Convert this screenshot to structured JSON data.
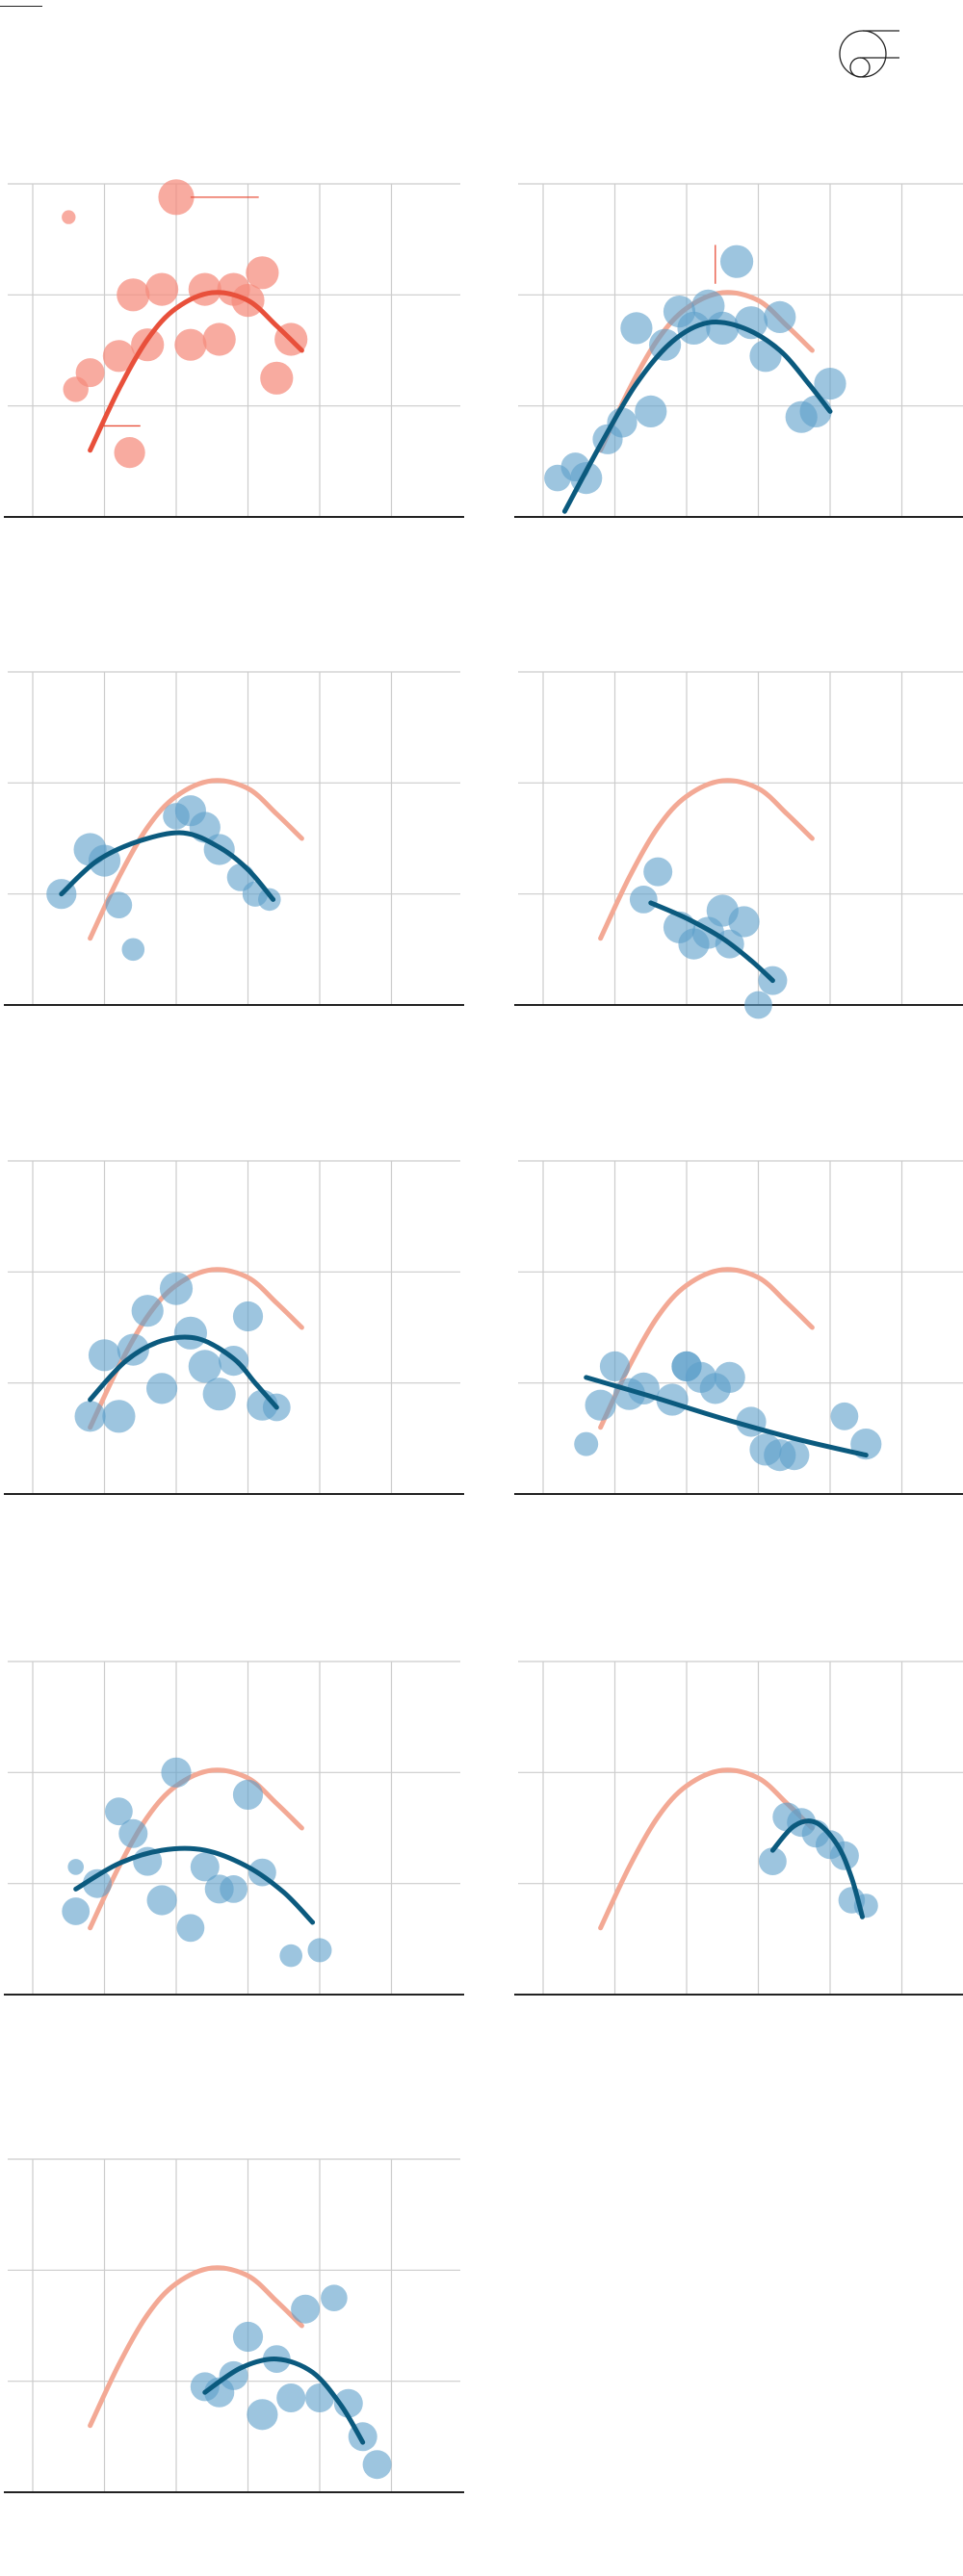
{
  "legend": {
    "icon": "bubble-size-legend-icon"
  },
  "colors": {
    "reference_fill": "#f58a7c",
    "reference_curve_main": "#e8503b",
    "reference_curve_faded": "#f3a995",
    "group_fill": "#5b9ec9",
    "group_curve": "#0b5a7e",
    "gridline": "#cccccc",
    "axis": "#222222"
  },
  "chart_data": [
    {
      "type": "scatter",
      "panel": "reference",
      "x_range": [
        0,
        6
      ],
      "y_range": [
        0,
        3
      ],
      "points": [
        {
          "x": 0.5,
          "y": 2.7,
          "size": 0.15
        },
        {
          "x": 2.0,
          "y": 2.88,
          "size": 1.0
        },
        {
          "x": 0.6,
          "y": 1.15,
          "size": 0.5
        },
        {
          "x": 0.8,
          "y": 1.3,
          "size": 0.65
        },
        {
          "x": 1.2,
          "y": 1.45,
          "size": 0.8
        },
        {
          "x": 1.4,
          "y": 2.0,
          "size": 0.85
        },
        {
          "x": 1.6,
          "y": 1.55,
          "size": 0.85
        },
        {
          "x": 1.8,
          "y": 2.05,
          "size": 0.85
        },
        {
          "x": 2.2,
          "y": 1.55,
          "size": 0.8
        },
        {
          "x": 2.4,
          "y": 2.05,
          "size": 0.85
        },
        {
          "x": 2.6,
          "y": 1.6,
          "size": 0.85
        },
        {
          "x": 2.8,
          "y": 2.05,
          "size": 0.85
        },
        {
          "x": 3.0,
          "y": 1.95,
          "size": 0.85
        },
        {
          "x": 3.2,
          "y": 2.2,
          "size": 0.85
        },
        {
          "x": 3.4,
          "y": 1.25,
          "size": 0.85
        },
        {
          "x": 3.6,
          "y": 1.6,
          "size": 0.85
        },
        {
          "x": 1.35,
          "y": 0.58,
          "size": 0.75
        }
      ],
      "curve": [
        [
          0.8,
          0.6
        ],
        [
          1.2,
          1.15
        ],
        [
          1.6,
          1.6
        ],
        [
          2.0,
          1.88
        ],
        [
          2.5,
          2.02
        ],
        [
          3.0,
          1.95
        ],
        [
          3.4,
          1.72
        ],
        [
          3.75,
          1.5
        ]
      ]
    },
    {
      "type": "scatter",
      "panel": "group-1",
      "x_range": [
        0,
        6
      ],
      "y_range": [
        0,
        3
      ],
      "points": [
        {
          "x": 0.2,
          "y": 0.35,
          "size": 0.55
        },
        {
          "x": 0.45,
          "y": 0.45,
          "size": 0.65
        },
        {
          "x": 0.6,
          "y": 0.35,
          "size": 0.8
        },
        {
          "x": 0.9,
          "y": 0.7,
          "size": 0.7
        },
        {
          "x": 1.1,
          "y": 0.85,
          "size": 0.7
        },
        {
          "x": 1.3,
          "y": 1.7,
          "size": 0.8
        },
        {
          "x": 1.5,
          "y": 0.95,
          "size": 0.8
        },
        {
          "x": 1.7,
          "y": 1.55,
          "size": 0.8
        },
        {
          "x": 1.9,
          "y": 1.85,
          "size": 0.8
        },
        {
          "x": 2.1,
          "y": 1.7,
          "size": 0.85
        },
        {
          "x": 2.3,
          "y": 1.9,
          "size": 0.85
        },
        {
          "x": 2.5,
          "y": 1.7,
          "size": 0.85
        },
        {
          "x": 2.7,
          "y": 2.3,
          "size": 0.85
        },
        {
          "x": 2.9,
          "y": 1.75,
          "size": 0.85
        },
        {
          "x": 3.1,
          "y": 1.45,
          "size": 0.8
        },
        {
          "x": 3.3,
          "y": 1.8,
          "size": 0.8
        },
        {
          "x": 3.6,
          "y": 0.9,
          "size": 0.8
        },
        {
          "x": 3.8,
          "y": 0.95,
          "size": 0.8
        },
        {
          "x": 4.0,
          "y": 1.2,
          "size": 0.8
        }
      ],
      "curve": [
        [
          0.3,
          0.05
        ],
        [
          0.8,
          0.65
        ],
        [
          1.3,
          1.2
        ],
        [
          1.8,
          1.58
        ],
        [
          2.3,
          1.75
        ],
        [
          2.8,
          1.7
        ],
        [
          3.3,
          1.5
        ],
        [
          3.7,
          1.2
        ],
        [
          4.0,
          0.95
        ]
      ]
    },
    {
      "type": "scatter",
      "panel": "group-2",
      "x_range": [
        0,
        6
      ],
      "y_range": [
        0,
        3
      ],
      "points": [
        {
          "x": 0.4,
          "y": 1.0,
          "size": 0.7
        },
        {
          "x": 0.8,
          "y": 1.4,
          "size": 0.85
        },
        {
          "x": 1.0,
          "y": 1.3,
          "size": 0.8
        },
        {
          "x": 1.2,
          "y": 0.9,
          "size": 0.55
        },
        {
          "x": 1.4,
          "y": 0.5,
          "size": 0.4
        },
        {
          "x": 2.0,
          "y": 1.7,
          "size": 0.55
        },
        {
          "x": 2.2,
          "y": 1.75,
          "size": 0.75
        },
        {
          "x": 2.4,
          "y": 1.6,
          "size": 0.75
        },
        {
          "x": 2.6,
          "y": 1.4,
          "size": 0.75
        },
        {
          "x": 2.9,
          "y": 1.15,
          "size": 0.6
        },
        {
          "x": 3.1,
          "y": 1.0,
          "size": 0.5
        },
        {
          "x": 3.3,
          "y": 0.95,
          "size": 0.4
        }
      ],
      "curve": [
        [
          0.4,
          1.0
        ],
        [
          0.9,
          1.3
        ],
        [
          1.5,
          1.48
        ],
        [
          2.1,
          1.55
        ],
        [
          2.6,
          1.42
        ],
        [
          3.0,
          1.22
        ],
        [
          3.35,
          0.95
        ]
      ]
    },
    {
      "type": "scatter",
      "panel": "group-3",
      "x_range": [
        0,
        6
      ],
      "y_range": [
        0,
        3
      ],
      "points": [
        {
          "x": 1.6,
          "y": 1.2,
          "size": 0.65
        },
        {
          "x": 1.4,
          "y": 0.95,
          "size": 0.6
        },
        {
          "x": 1.9,
          "y": 0.7,
          "size": 0.8
        },
        {
          "x": 2.1,
          "y": 0.55,
          "size": 0.75
        },
        {
          "x": 2.3,
          "y": 0.65,
          "size": 0.8
        },
        {
          "x": 2.5,
          "y": 0.85,
          "size": 0.8
        },
        {
          "x": 2.8,
          "y": 0.75,
          "size": 0.75
        },
        {
          "x": 2.6,
          "y": 0.55,
          "size": 0.65
        },
        {
          "x": 3.2,
          "y": 0.22,
          "size": 0.65
        },
        {
          "x": 3.0,
          "y": 0.0,
          "size": 0.6
        }
      ],
      "curve": [
        [
          1.5,
          0.92
        ],
        [
          2.0,
          0.78
        ],
        [
          2.5,
          0.6
        ],
        [
          2.9,
          0.4
        ],
        [
          3.2,
          0.22
        ]
      ]
    },
    {
      "type": "scatter",
      "panel": "group-4",
      "x_range": [
        0,
        6
      ],
      "y_range": [
        0,
        3
      ],
      "points": [
        {
          "x": 0.8,
          "y": 0.7,
          "size": 0.75
        },
        {
          "x": 1.2,
          "y": 0.7,
          "size": 0.85
        },
        {
          "x": 1.0,
          "y": 1.25,
          "size": 0.8
        },
        {
          "x": 1.4,
          "y": 1.3,
          "size": 0.8
        },
        {
          "x": 1.6,
          "y": 1.65,
          "size": 0.8
        },
        {
          "x": 1.8,
          "y": 0.95,
          "size": 0.75
        },
        {
          "x": 2.0,
          "y": 1.85,
          "size": 0.85
        },
        {
          "x": 2.2,
          "y": 1.45,
          "size": 0.85
        },
        {
          "x": 2.4,
          "y": 1.15,
          "size": 0.85
        },
        {
          "x": 2.6,
          "y": 0.9,
          "size": 0.85
        },
        {
          "x": 2.8,
          "y": 1.2,
          "size": 0.7
        },
        {
          "x": 3.0,
          "y": 1.6,
          "size": 0.7
        },
        {
          "x": 3.2,
          "y": 0.8,
          "size": 0.75
        },
        {
          "x": 3.4,
          "y": 0.78,
          "size": 0.6
        }
      ],
      "curve": [
        [
          0.8,
          0.85
        ],
        [
          1.3,
          1.2
        ],
        [
          1.8,
          1.38
        ],
        [
          2.3,
          1.4
        ],
        [
          2.8,
          1.22
        ],
        [
          3.1,
          1.0
        ],
        [
          3.4,
          0.78
        ]
      ]
    },
    {
      "type": "scatter",
      "panel": "group-5",
      "x_range": [
        0,
        6
      ],
      "y_range": [
        0,
        3
      ],
      "points": [
        {
          "x": 0.8,
          "y": 0.8,
          "size": 0.75
        },
        {
          "x": 1.0,
          "y": 1.15,
          "size": 0.7
        },
        {
          "x": 1.2,
          "y": 0.9,
          "size": 0.8
        },
        {
          "x": 1.4,
          "y": 0.95,
          "size": 0.8
        },
        {
          "x": 1.8,
          "y": 0.85,
          "size": 0.8
        },
        {
          "x": 2.0,
          "y": 1.15,
          "size": 0.7
        },
        {
          "x": 2.2,
          "y": 1.05,
          "size": 0.75
        },
        {
          "x": 2.4,
          "y": 0.95,
          "size": 0.75
        },
        {
          "x": 2.6,
          "y": 1.05,
          "size": 0.75
        },
        {
          "x": 2.0,
          "y": 1.15,
          "size": 0.7
        },
        {
          "x": 2.9,
          "y": 0.65,
          "size": 0.7
        },
        {
          "x": 3.1,
          "y": 0.4,
          "size": 0.8
        },
        {
          "x": 3.3,
          "y": 0.35,
          "size": 0.8
        },
        {
          "x": 3.5,
          "y": 0.35,
          "size": 0.7
        },
        {
          "x": 4.2,
          "y": 0.7,
          "size": 0.6
        },
        {
          "x": 4.5,
          "y": 0.45,
          "size": 0.75
        },
        {
          "x": 0.6,
          "y": 0.45,
          "size": 0.45
        }
      ],
      "curve": [
        [
          0.6,
          1.05
        ],
        [
          1.5,
          0.88
        ],
        [
          2.5,
          0.68
        ],
        [
          3.5,
          0.5
        ],
        [
          4.5,
          0.35
        ]
      ]
    },
    {
      "type": "scatter",
      "panel": "group-6",
      "x_range": [
        0,
        6
      ],
      "y_range": [
        0,
        3
      ],
      "points": [
        {
          "x": 0.6,
          "y": 0.75,
          "size": 0.6
        },
        {
          "x": 0.9,
          "y": 1.0,
          "size": 0.65
        },
        {
          "x": 1.2,
          "y": 1.65,
          "size": 0.6
        },
        {
          "x": 1.4,
          "y": 1.45,
          "size": 0.65
        },
        {
          "x": 1.6,
          "y": 1.2,
          "size": 0.65
        },
        {
          "x": 1.8,
          "y": 0.85,
          "size": 0.7
        },
        {
          "x": 2.0,
          "y": 2.0,
          "size": 0.7
        },
        {
          "x": 2.2,
          "y": 0.6,
          "size": 0.6
        },
        {
          "x": 2.4,
          "y": 1.15,
          "size": 0.65
        },
        {
          "x": 2.6,
          "y": 0.95,
          "size": 0.65
        },
        {
          "x": 2.8,
          "y": 0.95,
          "size": 0.6
        },
        {
          "x": 3.0,
          "y": 1.8,
          "size": 0.7
        },
        {
          "x": 3.2,
          "y": 1.1,
          "size": 0.6
        },
        {
          "x": 3.6,
          "y": 0.35,
          "size": 0.4
        },
        {
          "x": 4.0,
          "y": 0.4,
          "size": 0.45
        },
        {
          "x": 0.6,
          "y": 1.15,
          "size": 0.2
        }
      ],
      "curve": [
        [
          0.6,
          0.95
        ],
        [
          1.2,
          1.18
        ],
        [
          1.8,
          1.3
        ],
        [
          2.4,
          1.3
        ],
        [
          3.0,
          1.15
        ],
        [
          3.5,
          0.92
        ],
        [
          3.9,
          0.65
        ]
      ]
    },
    {
      "type": "scatter",
      "panel": "group-7",
      "x_range": [
        0,
        6
      ],
      "y_range": [
        0,
        3
      ],
      "points": [
        {
          "x": 3.2,
          "y": 1.2,
          "size": 0.6
        },
        {
          "x": 3.4,
          "y": 1.6,
          "size": 0.65
        },
        {
          "x": 3.6,
          "y": 1.55,
          "size": 0.65
        },
        {
          "x": 3.8,
          "y": 1.45,
          "size": 0.6
        },
        {
          "x": 4.0,
          "y": 1.35,
          "size": 0.65
        },
        {
          "x": 4.2,
          "y": 1.25,
          "size": 0.65
        },
        {
          "x": 4.3,
          "y": 0.85,
          "size": 0.55
        },
        {
          "x": 4.5,
          "y": 0.8,
          "size": 0.45
        }
      ],
      "curve": [
        [
          3.2,
          1.3
        ],
        [
          3.5,
          1.52
        ],
        [
          3.8,
          1.55
        ],
        [
          4.1,
          1.35
        ],
        [
          4.3,
          1.05
        ],
        [
          4.45,
          0.7
        ]
      ]
    },
    {
      "type": "scatter",
      "panel": "group-8",
      "x_range": [
        0,
        6
      ],
      "y_range": [
        0,
        3
      ],
      "points": [
        {
          "x": 2.4,
          "y": 0.95,
          "size": 0.65
        },
        {
          "x": 2.6,
          "y": 0.9,
          "size": 0.7
        },
        {
          "x": 2.8,
          "y": 1.05,
          "size": 0.65
        },
        {
          "x": 3.0,
          "y": 1.4,
          "size": 0.7
        },
        {
          "x": 3.2,
          "y": 0.7,
          "size": 0.75
        },
        {
          "x": 3.4,
          "y": 1.2,
          "size": 0.6
        },
        {
          "x": 3.6,
          "y": 0.85,
          "size": 0.65
        },
        {
          "x": 3.8,
          "y": 1.65,
          "size": 0.65
        },
        {
          "x": 4.0,
          "y": 0.85,
          "size": 0.65
        },
        {
          "x": 4.2,
          "y": 1.75,
          "size": 0.55
        },
        {
          "x": 4.4,
          "y": 0.8,
          "size": 0.65
        },
        {
          "x": 4.6,
          "y": 0.5,
          "size": 0.65
        },
        {
          "x": 4.8,
          "y": 0.25,
          "size": 0.65
        }
      ],
      "curve": [
        [
          2.4,
          0.9
        ],
        [
          2.9,
          1.12
        ],
        [
          3.4,
          1.2
        ],
        [
          3.9,
          1.08
        ],
        [
          4.3,
          0.78
        ],
        [
          4.6,
          0.45
        ]
      ]
    }
  ]
}
